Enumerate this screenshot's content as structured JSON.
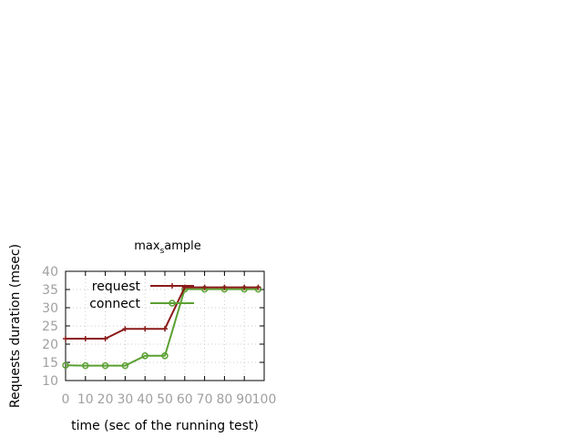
{
  "chart_data": {
    "type": "line",
    "title_main": "max",
    "title_sub": "s",
    "title_rest": "ample",
    "xlabel": "time (sec of the running test)",
    "ylabel": "Requests duration (msec)",
    "xlim": [
      0,
      100
    ],
    "ylim": [
      10,
      40
    ],
    "x_ticks": [
      0,
      10,
      20,
      30,
      40,
      50,
      60,
      70,
      80,
      90,
      100
    ],
    "y_ticks": [
      10,
      15,
      20,
      25,
      30,
      35,
      40
    ],
    "grid": true,
    "legend_position": "top-right",
    "x": [
      0,
      10,
      20,
      30,
      40,
      50,
      60,
      70,
      80,
      90,
      97
    ],
    "series": [
      {
        "name": "request",
        "color": "#8b1a1a",
        "marker": "plus",
        "values": [
          21.5,
          21.5,
          21.5,
          24.2,
          24.2,
          24.2,
          35.6,
          35.6,
          35.6,
          35.6,
          35.6
        ]
      },
      {
        "name": "connect",
        "color": "#5ba032",
        "marker": "circle",
        "values": [
          14.2,
          14.1,
          14.1,
          14.1,
          16.8,
          16.8,
          35.1,
          35.1,
          35.1,
          35.1,
          35.1
        ]
      }
    ]
  }
}
